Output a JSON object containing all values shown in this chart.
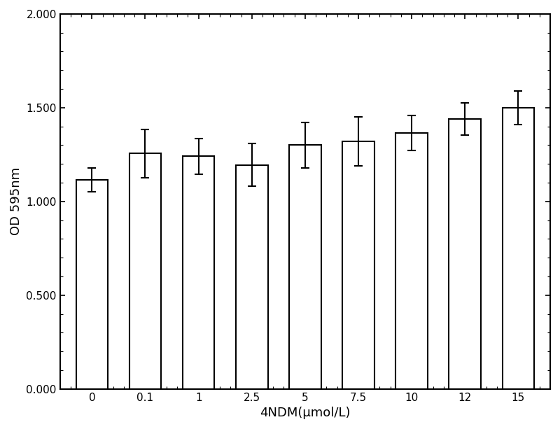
{
  "categories": [
    "0",
    "0.1",
    "1",
    "2.5",
    "5",
    "7.5",
    "10",
    "12",
    "15"
  ],
  "values": [
    1.115,
    1.255,
    1.24,
    1.195,
    1.3,
    1.32,
    1.365,
    1.44,
    1.5
  ],
  "errors": [
    0.065,
    0.13,
    0.095,
    0.115,
    0.12,
    0.13,
    0.095,
    0.085,
    0.09
  ],
  "bar_color": "#ffffff",
  "bar_edgecolor": "#000000",
  "bar_linewidth": 1.5,
  "error_color": "#000000",
  "error_linewidth": 1.5,
  "error_capsize": 4,
  "xlabel": "4NDM(μmol/L)",
  "ylabel": "OD 595nm",
  "xlabel_fontsize": 13,
  "ylabel_fontsize": 13,
  "tick_fontsize": 11,
  "ylim": [
    0.0,
    2.0
  ],
  "yticks": [
    0.0,
    0.5,
    1.0,
    1.5,
    2.0
  ],
  "background_color": "#ffffff",
  "spine_linewidth": 1.5
}
